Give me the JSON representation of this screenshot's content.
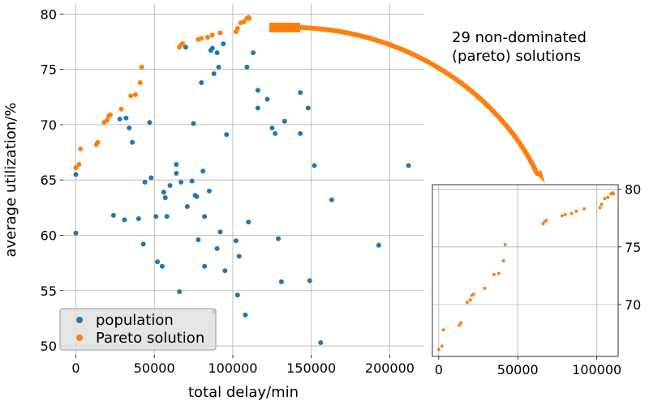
{
  "colors": {
    "population": "#1f77b4",
    "pareto": "#ff7f0e",
    "grid": "#b0b0b0",
    "legend_bg": "#e0e0e0"
  },
  "annotation": {
    "line1": "29 non-dominated",
    "line2": "(pareto) solutions"
  },
  "chart_data": [
    {
      "type": "scatter",
      "title": "",
      "xlabel": "total delay/min",
      "ylabel": "average utilization/%",
      "xlim": [
        -8000,
        222000
      ],
      "ylim": [
        49.2,
        80.9
      ],
      "xticks": [
        0,
        50000,
        100000,
        150000,
        200000
      ],
      "xtick_labels": [
        "0",
        "50000",
        "100000",
        "150000",
        "200000"
      ],
      "yticks": [
        50,
        55,
        60,
        65,
        70,
        75,
        80
      ],
      "ytick_labels": [
        "50",
        "55",
        "60",
        "65",
        "70",
        "75",
        "80"
      ],
      "grid": true,
      "legend": "lower-left",
      "series": [
        {
          "name": "population",
          "color": "#1f77b4",
          "points": [
            [
              0,
              60.2
            ],
            [
              0,
              65.5
            ],
            [
              24000,
              61.8
            ],
            [
              28000,
              70.5
            ],
            [
              31000,
              61.4
            ],
            [
              32000,
              70.6
            ],
            [
              34000,
              69.7
            ],
            [
              36000,
              68.4
            ],
            [
              40000,
              61.5
            ],
            [
              43000,
              59.2
            ],
            [
              44000,
              64.8
            ],
            [
              47000,
              70.2
            ],
            [
              48000,
              65.2
            ],
            [
              51000,
              61.7
            ],
            [
              52000,
              57.6
            ],
            [
              55000,
              57.2
            ],
            [
              56000,
              63.9
            ],
            [
              57000,
              63.4
            ],
            [
              58000,
              61.7
            ],
            [
              60000,
              64.5
            ],
            [
              64000,
              65.6
            ],
            [
              64000,
              66.4
            ],
            [
              66000,
              54.9
            ],
            [
              67000,
              64.8
            ],
            [
              70000,
              77.0
            ],
            [
              71000,
              62.6
            ],
            [
              74000,
              64.9
            ],
            [
              75000,
              70.1
            ],
            [
              76000,
              63.6
            ],
            [
              77000,
              63.5
            ],
            [
              78000,
              59.6
            ],
            [
              80000,
              73.8
            ],
            [
              81000,
              65.8
            ],
            [
              82000,
              61.7
            ],
            [
              82000,
              57.2
            ],
            [
              85000,
              64.0
            ],
            [
              86000,
              76.7
            ],
            [
              87000,
              76.9
            ],
            [
              88000,
              74.6
            ],
            [
              88000,
              53.1
            ],
            [
              90000,
              58.8
            ],
            [
              90000,
              76.5
            ],
            [
              91000,
              75.2
            ],
            [
              92000,
              60.3
            ],
            [
              94000,
              77.3
            ],
            [
              95000,
              56.8
            ],
            [
              96000,
              69.1
            ],
            [
              102000,
              59.5
            ],
            [
              103000,
              54.6
            ],
            [
              104000,
              58.1
            ],
            [
              108000,
              52.8
            ],
            [
              109000,
              75.2
            ],
            [
              110000,
              61.2
            ],
            [
              113000,
              76.5
            ],
            [
              116000,
              73.1
            ],
            [
              116000,
              71.5
            ],
            [
              122000,
              72.3
            ],
            [
              125000,
              69.7
            ],
            [
              127000,
              69.2
            ],
            [
              129000,
              59.7
            ],
            [
              131000,
              55.8
            ],
            [
              133000,
              70.3
            ],
            [
              143000,
              72.9
            ],
            [
              143000,
              69.2
            ],
            [
              148000,
              71.5
            ],
            [
              149000,
              55.9
            ],
            [
              152000,
              66.3
            ],
            [
              156000,
              50.3
            ],
            [
              163000,
              63.2
            ],
            [
              193000,
              59.1
            ],
            [
              212000,
              66.3
            ]
          ]
        },
        {
          "name": "Pareto solution",
          "color": "#ff7f0e",
          "points": [
            [
              0,
              66.1
            ],
            [
              2000,
              66.4
            ],
            [
              3000,
              67.8
            ],
            [
              13000,
              68.2
            ],
            [
              14000,
              68.4
            ],
            [
              18000,
              70.2
            ],
            [
              20000,
              70.4
            ],
            [
              21000,
              70.8
            ],
            [
              22000,
              70.9
            ],
            [
              29000,
              71.4
            ],
            [
              35000,
              72.6
            ],
            [
              38000,
              72.7
            ],
            [
              41000,
              73.8
            ],
            [
              42000,
              75.2
            ],
            [
              66000,
              77.0
            ],
            [
              67000,
              77.2
            ],
            [
              68000,
              77.3
            ],
            [
              78000,
              77.7
            ],
            [
              80000,
              77.8
            ],
            [
              84000,
              77.9
            ],
            [
              87000,
              78.1
            ],
            [
              92000,
              78.3
            ],
            [
              102000,
              78.4
            ],
            [
              103000,
              78.7
            ],
            [
              105000,
              79.2
            ],
            [
              107000,
              79.3
            ],
            [
              109000,
              79.6
            ],
            [
              110000,
              79.7
            ],
            [
              110500,
              79.6
            ]
          ]
        }
      ]
    },
    {
      "type": "scatter",
      "title": "",
      "xlabel": "",
      "ylabel": "",
      "xlim": [
        -4000,
        113500
      ],
      "ylim": [
        65.5,
        80.4
      ],
      "xticks": [
        0,
        50000,
        100000
      ],
      "xtick_labels": [
        "0",
        "50000",
        "100000"
      ],
      "yticks": [
        70,
        75,
        80
      ],
      "ytick_labels": [
        "70",
        "75",
        "80"
      ],
      "grid": true,
      "series": [
        {
          "color": "#ff7f0e",
          "points": [
            [
              0,
              66.1
            ],
            [
              2000,
              66.4
            ],
            [
              3000,
              67.8
            ],
            [
              13000,
              68.2
            ],
            [
              14000,
              68.4
            ],
            [
              18000,
              70.2
            ],
            [
              20000,
              70.4
            ],
            [
              21000,
              70.8
            ],
            [
              22000,
              70.9
            ],
            [
              29000,
              71.4
            ],
            [
              35000,
              72.6
            ],
            [
              38000,
              72.7
            ],
            [
              41000,
              73.8
            ],
            [
              42000,
              75.2
            ],
            [
              66000,
              77.0
            ],
            [
              67000,
              77.2
            ],
            [
              68000,
              77.3
            ],
            [
              78000,
              77.7
            ],
            [
              80000,
              77.8
            ],
            [
              84000,
              77.9
            ],
            [
              87000,
              78.1
            ],
            [
              92000,
              78.3
            ],
            [
              102000,
              78.4
            ],
            [
              103000,
              78.7
            ],
            [
              105000,
              79.2
            ],
            [
              107000,
              79.3
            ],
            [
              109000,
              79.6
            ],
            [
              110000,
              79.7
            ],
            [
              110500,
              79.6
            ]
          ]
        }
      ]
    }
  ]
}
